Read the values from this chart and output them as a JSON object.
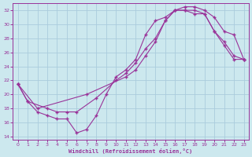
{
  "title": "",
  "xlabel": "Windchill (Refroidissement éolien,°C)",
  "bg_color": "#cce8ee",
  "line_color": "#993399",
  "grid_color": "#aaccdd",
  "xlim": [
    -0.5,
    23.5
  ],
  "ylim": [
    13.5,
    33
  ],
  "xticks": [
    0,
    1,
    2,
    3,
    4,
    5,
    6,
    7,
    8,
    9,
    10,
    11,
    12,
    13,
    14,
    15,
    16,
    17,
    18,
    19,
    20,
    21,
    22,
    23
  ],
  "yticks": [
    14,
    16,
    18,
    20,
    22,
    24,
    26,
    28,
    30,
    32
  ],
  "line1_x": [
    0,
    1,
    2,
    3,
    4,
    5,
    6,
    7,
    8,
    9,
    10,
    11,
    12,
    13,
    14,
    15,
    16,
    17,
    18,
    19,
    20,
    21,
    22,
    23
  ],
  "line1_y": [
    21.5,
    19.0,
    17.5,
    17.0,
    16.5,
    16.5,
    14.5,
    15.0,
    17.0,
    20.0,
    22.5,
    23.5,
    25.0,
    28.5,
    30.5,
    31.0,
    32.0,
    32.0,
    32.0,
    31.5,
    29.0,
    27.0,
    25.0,
    25.0
  ],
  "line2_x": [
    0,
    1,
    3,
    4,
    5,
    6,
    8,
    10,
    11,
    12,
    13,
    14,
    15,
    16,
    17,
    18,
    19,
    20,
    21,
    22,
    23
  ],
  "line2_y": [
    21.5,
    19.0,
    18.0,
    17.5,
    17.5,
    17.5,
    19.5,
    22.0,
    23.0,
    24.5,
    26.5,
    28.0,
    30.5,
    32.0,
    32.0,
    31.5,
    31.5,
    29.0,
    27.5,
    25.5,
    25.0
  ],
  "line3_x": [
    0,
    2,
    7,
    11,
    12,
    13,
    14,
    15,
    16,
    17,
    18,
    19,
    20,
    21,
    22,
    23
  ],
  "line3_y": [
    21.5,
    18.0,
    20.0,
    22.5,
    23.5,
    25.5,
    27.5,
    30.5,
    32.0,
    32.5,
    32.5,
    32.0,
    31.0,
    29.0,
    28.5,
    25.0
  ]
}
